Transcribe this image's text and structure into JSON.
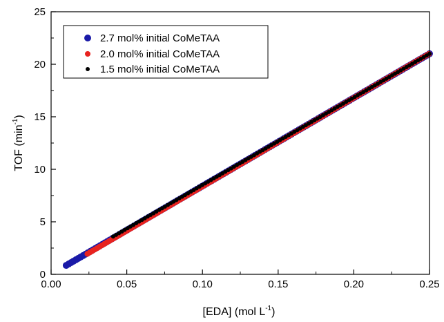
{
  "chart_data": {
    "type": "scatter",
    "xlabel": "[EDA] (mol L",
    "xlabel_sup": "-1",
    "xlabel_tail": ")",
    "ylabel": "TOF (min",
    "ylabel_sup": "-1",
    "ylabel_tail": ")",
    "xlim": [
      0.0,
      0.25
    ],
    "ylim": [
      0,
      25
    ],
    "x_ticks": [
      "0.00",
      "0.05",
      "0.10",
      "0.15",
      "0.20",
      "0.25"
    ],
    "y_ticks": [
      "0",
      "5",
      "10",
      "15",
      "20",
      "25"
    ],
    "grid": false,
    "legend_position": "top-left",
    "series": [
      {
        "name": "2.7 mol% initial CoMeTAA",
        "color": "#1a1aa8",
        "x_range": [
          0.01,
          0.25
        ],
        "y_range": [
          0.85,
          21.0
        ],
        "x": [
          0.01,
          0.025,
          0.05,
          0.1,
          0.15,
          0.2,
          0.25
        ],
        "y": [
          0.85,
          2.06,
          4.08,
          8.12,
          12.16,
          16.2,
          21.0
        ]
      },
      {
        "name": "2.0 mol% initial CoMeTAA",
        "color": "#e8231f",
        "x_range": [
          0.024,
          0.251
        ],
        "y_range": [
          1.95,
          21.1
        ],
        "x": [
          0.024,
          0.04,
          0.05,
          0.1,
          0.15,
          0.2,
          0.251
        ],
        "y": [
          1.95,
          3.25,
          4.06,
          8.1,
          12.14,
          16.18,
          21.1
        ]
      },
      {
        "name": "1.5 mol% initial CoMeTAA",
        "color": "#000000",
        "x_range": [
          0.041,
          0.25
        ],
        "y_range": [
          3.6,
          21.0
        ],
        "x": [
          0.041,
          0.05,
          0.1,
          0.15,
          0.2,
          0.25
        ],
        "y": [
          3.6,
          4.32,
          8.36,
          12.4,
          16.44,
          21.0
        ]
      }
    ]
  }
}
